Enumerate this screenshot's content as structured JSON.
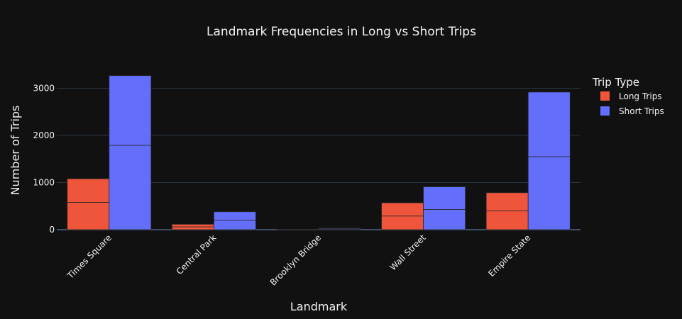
{
  "chart_data": {
    "type": "bar",
    "title": "Landmark Frequencies in Long vs Short Trips",
    "xlabel": "Landmark",
    "ylabel": "Number of Trips",
    "categories": [
      "Times Square",
      "Central Park",
      "Brooklyn Bridge",
      "Wall Street",
      "Empire State"
    ],
    "ylim": [
      0,
      3400
    ],
    "yticks": [
      0,
      1000,
      2000,
      3000
    ],
    "ytick_labels": [
      "0",
      "1000",
      "2000",
      "3000"
    ],
    "legend_title": "Trip Type",
    "legend_position": "top-right",
    "grid": true,
    "stacked_segments": true,
    "series": [
      {
        "name": "Long Trips",
        "color": "#EF553B",
        "segments": [
          [
            580,
            500
          ],
          [
            60,
            55
          ],
          [
            5,
            5
          ],
          [
            290,
            280
          ],
          [
            400,
            385
          ]
        ],
        "values": [
          1080,
          115,
          10,
          570,
          785
        ]
      },
      {
        "name": "Short Trips",
        "color": "#636EFA",
        "segments": [
          [
            1790,
            1480
          ],
          [
            200,
            180
          ],
          [
            15,
            15
          ],
          [
            430,
            480
          ],
          [
            1550,
            1370
          ]
        ],
        "values": [
          3270,
          380,
          30,
          910,
          2920
        ]
      }
    ]
  }
}
